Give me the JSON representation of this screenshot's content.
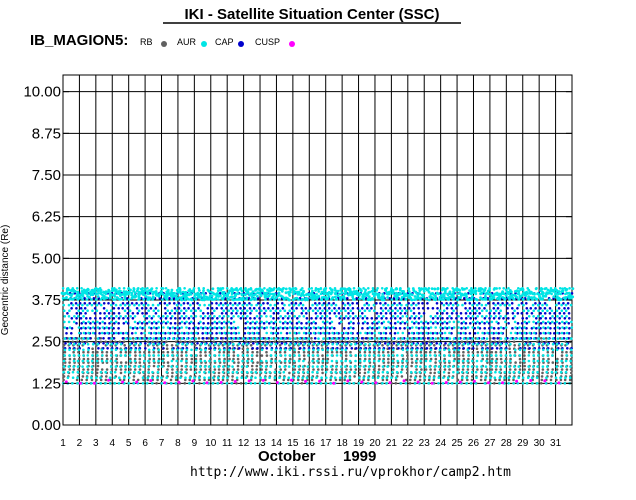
{
  "header": {
    "title": "IKI - Satellite Situation Center (SSC)",
    "satellite": "IB_MAGION5:"
  },
  "footer": {
    "month": "October",
    "year": "1999",
    "url": "http://www.iki.rssi.ru/vprokhor/camp2.htm"
  },
  "legend": [
    {
      "label": "RB",
      "color": "#606060"
    },
    {
      "label": "AUR",
      "color": "#00e5e5"
    },
    {
      "label": "CAP",
      "color": "#0000cc"
    },
    {
      "label": "CUSP",
      "color": "#ff00ff"
    }
  ],
  "chart_data": {
    "type": "scatter",
    "ylabel": "Geocentric distance (Re)",
    "ylim": [
      0,
      10.5
    ],
    "yticks": [
      "0.00",
      "1.25",
      "2.50",
      "3.75",
      "5.00",
      "6.25",
      "7.50",
      "8.75",
      "10.00"
    ],
    "xlim": [
      1,
      32
    ],
    "xticks": [
      "1",
      "2",
      "3",
      "4",
      "5",
      "6",
      "7",
      "8",
      "9",
      "10",
      "11",
      "12",
      "13",
      "14",
      "15",
      "16",
      "17",
      "18",
      "19",
      "20",
      "21",
      "22",
      "23",
      "24",
      "25",
      "26",
      "27",
      "28",
      "29",
      "30",
      "31"
    ],
    "grid": true,
    "series_ranges": [
      {
        "name": "RB",
        "color": "#606060",
        "y_min": 1.25,
        "y_max": 2.6
      },
      {
        "name": "AUR",
        "color": "#00e5e5",
        "y_min": 1.25,
        "y_max": 4.1
      },
      {
        "name": "CAP",
        "color": "#0000cc",
        "y_min": 2.3,
        "y_max": 3.95
      },
      {
        "name": "CUSP",
        "color": "#ff00ff",
        "y_min": 1.25,
        "y_max": 1.35
      }
    ],
    "orbits_per_day": 3.5
  }
}
